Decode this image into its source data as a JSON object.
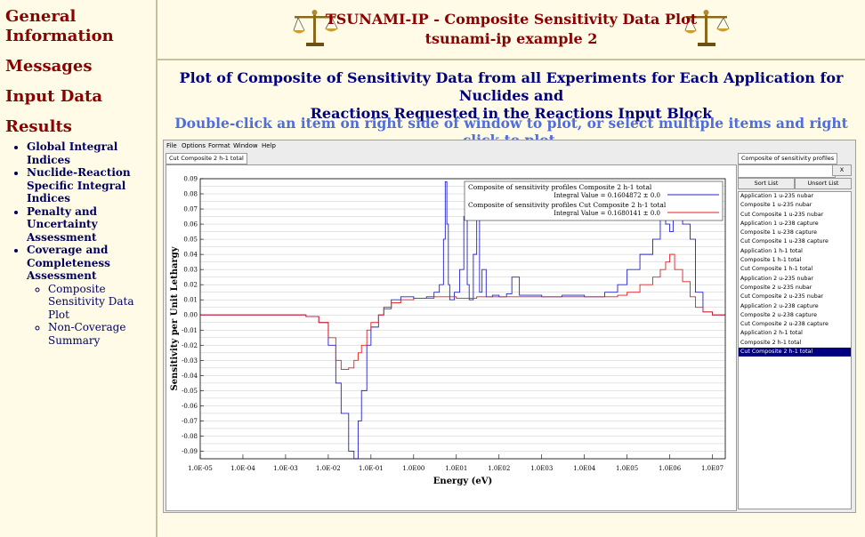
{
  "nav": {
    "sections": [
      "General Information",
      "Messages",
      "Input Data",
      "Results"
    ],
    "results_items": [
      "Global Integral Indices",
      "Nuclide-Reaction Specific Integral Indices",
      "Penalty and Uncertainty Assessment",
      "Coverage and Completeness Assessment"
    ],
    "coverage_sub": [
      "Composite Sensitivity Data Plot",
      "Non-Coverage Summary"
    ]
  },
  "header": {
    "title": "TSUNAMI-IP - Composite Sensitivity Data Plot",
    "subtitle": "tsunami-ip example 2"
  },
  "main": {
    "plot_title_line1": "Plot of Composite of Sensitivity Data from all Experiments for Each Application for Nuclides and",
    "plot_title_line2": "Reactions Requested in the Reactions Input Block",
    "instructions": "Double-click an item on right side of window to plot, or select multiple items and right click to plot."
  },
  "app": {
    "menu": [
      "File",
      "Options",
      "Format",
      "Window",
      "Help"
    ],
    "active_tab": "Cut Composite 2 h-1 total",
    "side_tab": "Composite of sensitivity profiles",
    "search_value": "",
    "close_label": "X",
    "sort_label": "Sort List",
    "unsort_label": "Unsort List",
    "list_items": [
      "Application 1 u-235 nubar",
      "Composite 1 u-235 nubar",
      "Cut Composite 1 u-235 nubar",
      "Application 1 u-238 capture",
      "Composite 1 u-238 capture",
      "Cut Composite 1 u-238 capture",
      "Application 1 h-1 total",
      "Composite 1 h-1 total",
      "Cut Composite 1 h-1 total",
      "Application 2 u-235 nubar",
      "Composite 2 u-235 nubar",
      "Cut Composite 2 u-235 nubar",
      "Application 2 u-238 capture",
      "Composite 2 u-238 capture",
      "Cut Composite 2 u-238 capture",
      "Application 2 h-1 total",
      "Composite 2 h-1 total",
      "Cut Composite 2 h-1 total"
    ],
    "selected_item": "Cut Composite 2 h-1 total"
  },
  "colors": {
    "brand": "#8b0000",
    "nav_link": "#000060",
    "series1": "#2020d0",
    "series2": "#e02020"
  },
  "chart_data": {
    "type": "line",
    "xlabel": "Energy (eV)",
    "ylabel": "Sensitivity per Unit Lethargy",
    "x_scale": "log",
    "xlim": [
      1e-05,
      20000000.0
    ],
    "ylim": [
      -0.095,
      0.09
    ],
    "x_ticks": [
      "1.0E-05",
      "1.0E-04",
      "1.0E-03",
      "1.0E-02",
      "1.0E-01",
      "1.0E00",
      "1.0E01",
      "1.0E02",
      "1.0E03",
      "1.0E04",
      "1.0E05",
      "1.0E06",
      "1.0E07"
    ],
    "y_ticks": [
      "0.09",
      "0.08",
      "0.07",
      "0.06",
      "0.05",
      "0.04",
      "0.03",
      "0.02",
      "0.01",
      "0.00",
      "-0.01",
      "-0.02",
      "-0.03",
      "-0.04",
      "-0.05",
      "-0.06",
      "-0.07",
      "-0.08",
      "-0.09"
    ],
    "grid": true,
    "legend_position": "top-right",
    "series": [
      {
        "name": "Composite of sensitivity profiles Composite 2 h-1 total",
        "integral": "Integral Value = 0.1604872 ± 0.0",
        "color": "#2020d0",
        "x": [
          1e-05,
          0.001,
          0.003,
          0.006,
          0.01,
          0.015,
          0.02,
          0.03,
          0.04,
          0.05,
          0.06,
          0.08,
          0.1,
          0.15,
          0.2,
          0.3,
          0.5,
          1,
          2,
          3,
          4,
          5,
          5.5,
          6,
          6.5,
          7,
          9,
          12,
          15,
          18,
          20,
          25,
          30,
          35,
          40,
          50,
          70,
          100,
          150,
          200,
          300,
          1000,
          3000,
          10000.0,
          30000.0,
          60000.0,
          100000.0,
          200000.0,
          400000.0,
          600000.0,
          800000.0,
          1000000.0,
          1200000.0,
          1500000.0,
          2000000.0,
          3000000.0,
          4000000.0,
          6000000.0,
          10000000.0,
          20000000.0
        ],
        "y": [
          0.0,
          0.0,
          -0.001,
          -0.005,
          -0.02,
          -0.045,
          -0.065,
          -0.09,
          -0.095,
          -0.07,
          -0.05,
          -0.02,
          -0.008,
          0.0,
          0.005,
          0.01,
          0.012,
          0.011,
          0.012,
          0.015,
          0.02,
          0.05,
          0.088,
          0.06,
          0.02,
          0.01,
          0.015,
          0.03,
          0.065,
          0.02,
          0.01,
          0.04,
          0.068,
          0.015,
          0.03,
          0.012,
          0.013,
          0.012,
          0.014,
          0.025,
          0.013,
          0.012,
          0.013,
          0.012,
          0.015,
          0.02,
          0.03,
          0.04,
          0.05,
          0.065,
          0.06,
          0.055,
          0.065,
          0.07,
          0.06,
          0.05,
          0.015,
          0.002,
          0.0,
          0.0
        ]
      },
      {
        "name": "Composite of sensitivity profiles Cut Composite 2 h-1 total",
        "integral": "Integral Value = 0.1680141 ± 0.0",
        "color": "#e02020",
        "x": [
          1e-05,
          0.001,
          0.003,
          0.006,
          0.01,
          0.015,
          0.02,
          0.03,
          0.04,
          0.05,
          0.06,
          0.08,
          0.1,
          0.15,
          0.2,
          0.3,
          0.5,
          1,
          3,
          10,
          30,
          100,
          1000,
          10000.0,
          30000.0,
          60000.0,
          100000.0,
          200000.0,
          400000.0,
          600000.0,
          800000.0,
          1000000.0,
          1300000.0,
          2000000.0,
          3000000.0,
          4000000.0,
          6000000.0,
          10000000.0,
          20000000.0
        ],
        "y": [
          0.0,
          0.0,
          -0.001,
          -0.005,
          -0.015,
          -0.03,
          -0.036,
          -0.035,
          -0.03,
          -0.025,
          -0.02,
          -0.01,
          -0.005,
          0.0,
          0.004,
          0.008,
          0.01,
          0.011,
          0.012,
          0.011,
          0.012,
          0.012,
          0.012,
          0.012,
          0.012,
          0.013,
          0.015,
          0.02,
          0.025,
          0.03,
          0.035,
          0.04,
          0.03,
          0.022,
          0.012,
          0.005,
          0.002,
          0.0,
          0.0
        ]
      }
    ]
  }
}
